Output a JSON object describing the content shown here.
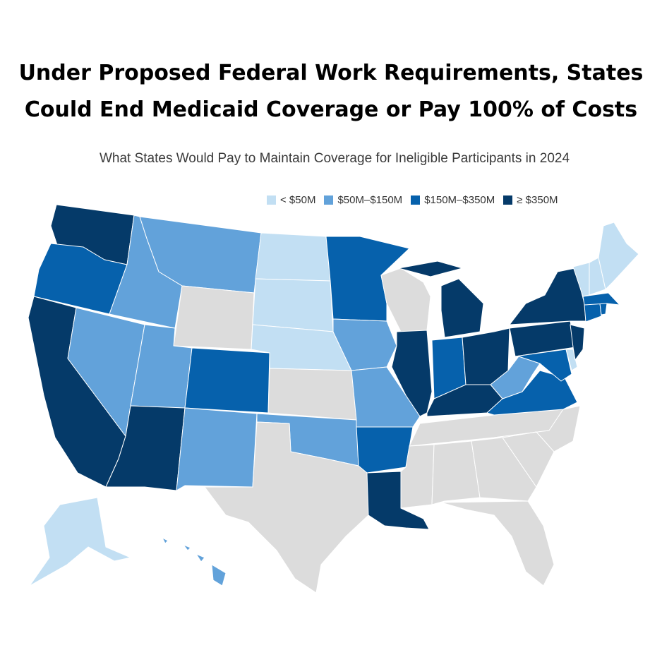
{
  "title_line1": "Under Proposed Federal Work Requirements, States",
  "title_line2": "Could End Medicaid Coverage or Pay 100% of Costs",
  "subtitle": "What States Would Pay to Maintain Coverage for Ineligible Participants in 2024",
  "legend": [
    {
      "label": "< $50M",
      "color": "#c2dff3"
    },
    {
      "label": "$50M–$150M",
      "color": "#62a2da"
    },
    {
      "label": "$150M–$350M",
      "color": "#0661ac"
    },
    {
      "label": "≥ $350M",
      "color": "#053a69"
    }
  ],
  "no_data_color": "#dcdcdc",
  "states": {
    "WA": 3,
    "OR": 2,
    "CA": 3,
    "NV": 1,
    "ID": 1,
    "MT": 1,
    "WY": -1,
    "UT": 1,
    "AZ": 3,
    "CO": 2,
    "NM": 1,
    "ND": 0,
    "SD": 0,
    "NE": 0,
    "KS": -1,
    "OK": 1,
    "TX": -1,
    "MN": 2,
    "IA": 1,
    "MO": 1,
    "AR": 2,
    "LA": 3,
    "WI": -1,
    "IL": 3,
    "MI": 3,
    "IN": 2,
    "OH": 3,
    "KY": 3,
    "TN": -1,
    "MS": -1,
    "AL": -1,
    "GA": -1,
    "FL": -1,
    "SC": -1,
    "NC": -1,
    "VA": 2,
    "WV": 1,
    "MD": 2,
    "DE": 0,
    "NJ": 3,
    "PA": 3,
    "NY": 3,
    "CT": 2,
    "RI": 2,
    "MA": 2,
    "VT": 0,
    "NH": 0,
    "ME": 0,
    "AK": 0,
    "HI": 1
  }
}
